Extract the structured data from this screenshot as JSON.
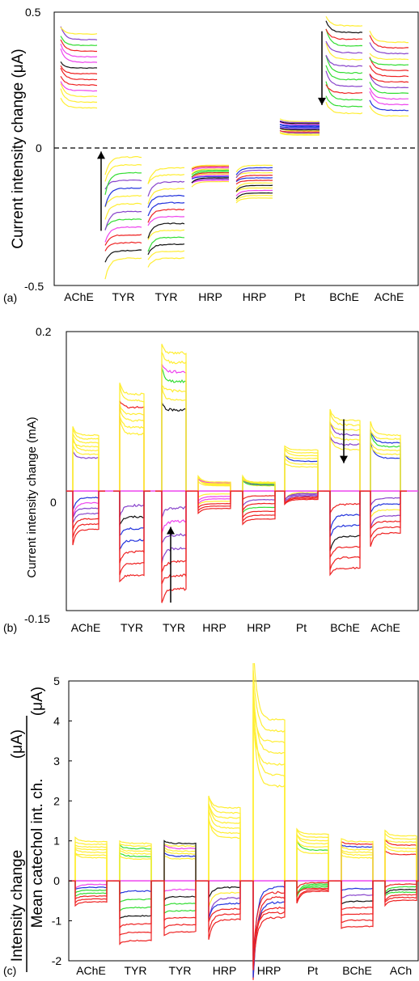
{
  "colors": {
    "yellow": "#ffee33",
    "red": "#ee2222",
    "black": "#111111",
    "magenta": "#ee44ee",
    "blue": "#2233dd",
    "green": "#33dd33",
    "purple": "#8844cc"
  },
  "chart_data": [
    {
      "type": "line",
      "panel_label": "(a)",
      "ylabel": "Current intensity change (μA)",
      "ylim": [
        -0.5,
        0.5
      ],
      "y_ticks": [
        "0.5",
        "0",
        "-0.5"
      ],
      "categories": [
        "AChE",
        "TYR",
        "TYR",
        "HRP",
        "HRP",
        "Pt",
        "BChE",
        "AChE"
      ],
      "zero_line": "dashed",
      "blocks": [
        {
          "sensor": "AChE",
          "min": 0.15,
          "max": 0.42,
          "initial_bump": 0.05
        },
        {
          "sensor": "TYR",
          "min": -0.4,
          "max": -0.03,
          "initial_bump": 0.08
        },
        {
          "sensor": "TYR",
          "min": -0.4,
          "max": -0.07,
          "initial_bump": 0.06
        },
        {
          "sensor": "HRP",
          "min": -0.12,
          "max": -0.06,
          "initial_bump": 0.02
        },
        {
          "sensor": "HRP",
          "min": -0.18,
          "max": -0.06,
          "initial_bump": 0.03
        },
        {
          "sensor": "Pt",
          "min": 0.05,
          "max": 0.1,
          "initial_bump": 0.01
        },
        {
          "sensor": "BChE",
          "min": 0.13,
          "max": 0.45,
          "initial_bump": 0.07
        },
        {
          "sensor": "AChE",
          "min": 0.12,
          "max": 0.39,
          "initial_bump": 0.05
        }
      ],
      "arrows": [
        {
          "block": 1,
          "direction": "up",
          "from": -0.3,
          "to": -0.01
        },
        {
          "block": 6,
          "direction": "down",
          "from": 0.43,
          "to": 0.16
        }
      ]
    },
    {
      "type": "line",
      "panel_label": "(b)",
      "ylabel": "Current intensity change (mA)",
      "ylim": [
        -0.15,
        0.2
      ],
      "y_ticks": [
        "0.2",
        "0",
        "-0.15"
      ],
      "categories": [
        "AChE",
        "TYR",
        "TYR",
        "HRP",
        "HRP",
        "Pt",
        "BChE",
        "AChE"
      ],
      "blocks": [
        {
          "sensor": "AChE",
          "min": -0.055,
          "max": 0.075,
          "initial_bump": 0.02
        },
        {
          "sensor": "TYR",
          "min": -0.12,
          "max": 0.13,
          "initial_bump": 0.02
        },
        {
          "sensor": "TYR",
          "min": -0.14,
          "max": 0.185,
          "initial_bump": 0.02
        },
        {
          "sensor": "HRP",
          "min": -0.025,
          "max": 0.012,
          "initial_bump": 0.01
        },
        {
          "sensor": "HRP",
          "min": -0.04,
          "max": 0.012,
          "initial_bump": 0.01
        },
        {
          "sensor": "Pt",
          "min": -0.012,
          "max": 0.055,
          "initial_bump": 0.01
        },
        {
          "sensor": "BChE",
          "min": -0.11,
          "max": 0.095,
          "initial_bump": 0.02
        },
        {
          "sensor": "AChE",
          "min": -0.06,
          "max": 0.075,
          "initial_bump": 0.02
        }
      ],
      "arrows": [
        {
          "block": 2,
          "direction": "up",
          "from": -0.14,
          "to": -0.045
        },
        {
          "block": 6,
          "direction": "down",
          "from": 0.09,
          "to": 0.035
        }
      ]
    },
    {
      "type": "line",
      "panel_label": "(c)",
      "ylabel_numerator": "Intensity change",
      "ylabel_numerator_unit": "(μA)",
      "ylabel_denominator": "Mean catechol int. ch.",
      "ylabel_denominator_unit": "(μA)",
      "ylim": [
        -2,
        5
      ],
      "y_ticks": [
        "5",
        "4",
        "3",
        "2",
        "1",
        "0",
        "-1",
        "-2"
      ],
      "categories": [
        "AChE",
        "TYR",
        "TYR",
        "HRP",
        "HRP",
        "Pt",
        "BChE",
        "ACh"
      ],
      "blocks": [
        {
          "sensor": "AChE",
          "min": -0.6,
          "max": 1.05,
          "initial_bump": 0.1
        },
        {
          "sensor": "TYR",
          "min": -1.7,
          "max": 1.0,
          "initial_bump": 0.1
        },
        {
          "sensor": "TYR",
          "min": -1.45,
          "max": 1.0,
          "initial_bump": 0.1
        },
        {
          "sensor": "HRP",
          "min": -1.1,
          "max": 1.95,
          "initial_bump": 0.6
        },
        {
          "sensor": "HRP",
          "min": -1.05,
          "max": 4.3,
          "initial_bump": 2.3
        },
        {
          "sensor": "Pt",
          "min": -0.3,
          "max": 1.25,
          "initial_bump": 0.3
        },
        {
          "sensor": "BChE",
          "min": -1.3,
          "max": 1.05,
          "initial_bump": 0.1
        },
        {
          "sensor": "ACh",
          "min": -0.55,
          "max": 1.2,
          "initial_bump": 0.15
        }
      ],
      "arrows": []
    }
  ]
}
